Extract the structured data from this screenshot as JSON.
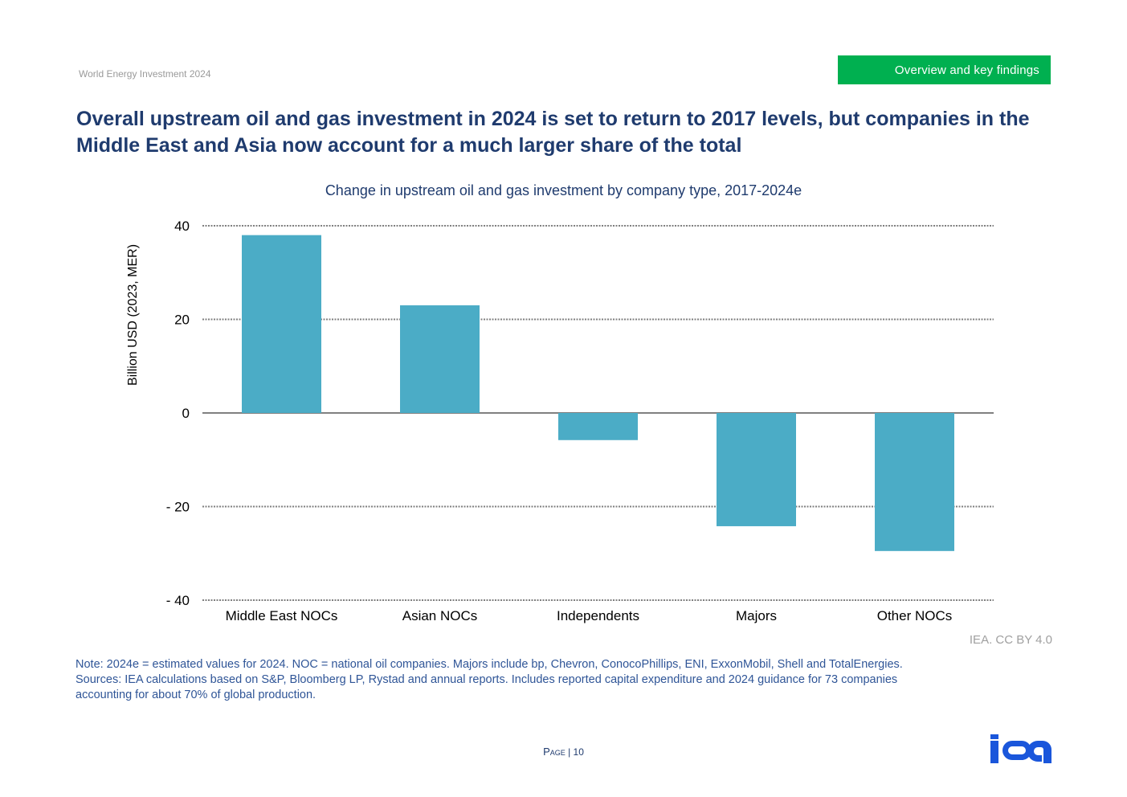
{
  "header": {
    "publication": "World Energy Investment 2024",
    "section_tag": "Overview and key findings"
  },
  "headline": "Overall upstream oil and gas investment in 2024 is set to return to 2017 levels, but companies in the Middle East and Asia now account for a much larger share of the total",
  "colors": {
    "bar": "#4bacc6",
    "title": "#1f3b6e",
    "tag": "#00b050",
    "note": "#2f5597",
    "logo": "#1a56db"
  },
  "chart_data": {
    "type": "bar",
    "title": "Change in upstream oil and gas investment by company type, 2017-2024e",
    "ylabel": "Billion USD (2023, MER)",
    "xlabel": "",
    "categories": [
      "Middle East NOCs",
      "Asian NOCs",
      "Independents",
      "Majors",
      "Other NOCs"
    ],
    "values": [
      38,
      23,
      -5.8,
      -24.2,
      -29.5
    ],
    "ylim": [
      -40,
      40
    ],
    "yticks": [
      40,
      20,
      0,
      -20,
      -40
    ],
    "ytick_labels": [
      "40",
      "20",
      "0",
      "- 20",
      "- 40"
    ],
    "grid": true
  },
  "credit": "IEA. CC BY 4.0",
  "note": {
    "line1": "Note: 2024e = estimated values for 2024. NOC = national oil companies. Majors include bp, Chevron, ConocoPhillips, ENI, ExxonMobil, Shell and TotalEnergies.",
    "line2": "Sources: IEA calculations based on S&P, Bloomberg LP, Rystad and annual reports. Includes reported capital expenditure and 2024 guidance for 73 companies",
    "line3": "accounting for about 70% of global production."
  },
  "footer": {
    "page_word": "Page",
    "page_number": "| 10",
    "logo_text": "iea"
  }
}
